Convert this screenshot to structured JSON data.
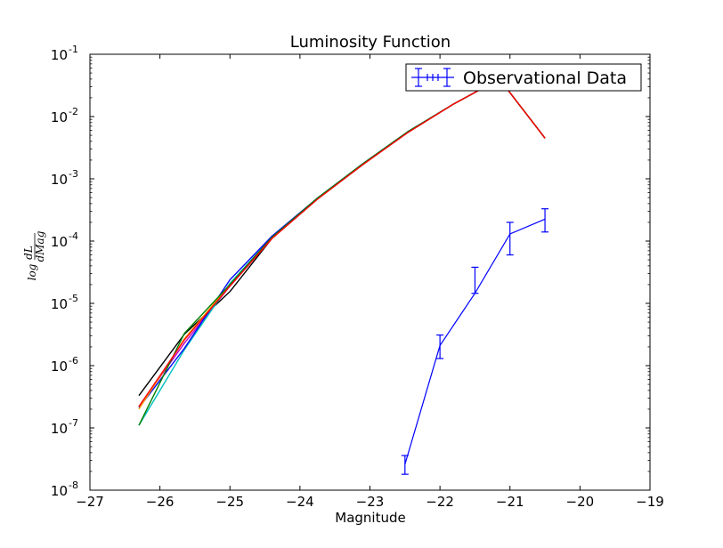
{
  "chart_data": {
    "type": "line",
    "title": "Luminosity Function",
    "xlabel": "Magnitude",
    "ylabel": "log dL/dMag",
    "xlim": [
      -27,
      -19
    ],
    "ylim": [
      1e-08,
      0.1
    ],
    "yscale": "log",
    "grid": false,
    "legend_position": "top-right",
    "x_ticks": [
      -27,
      -26,
      -25,
      -24,
      -23,
      -22,
      -21,
      -20,
      -19
    ],
    "x_tick_labels": [
      "−27",
      "−26",
      "−25",
      "−24",
      "−23",
      "−22",
      "−21",
      "−20",
      "−19"
    ],
    "y_ticks": [
      {
        "value": 1e-08,
        "base": "10",
        "exp": "-8"
      },
      {
        "value": 1e-07,
        "base": "10",
        "exp": "-7"
      },
      {
        "value": 1e-06,
        "base": "10",
        "exp": "-6"
      },
      {
        "value": 1e-05,
        "base": "10",
        "exp": "-5"
      },
      {
        "value": 0.0001,
        "base": "10",
        "exp": "-4"
      },
      {
        "value": 0.001,
        "base": "10",
        "exp": "-3"
      },
      {
        "value": 0.01,
        "base": "10",
        "exp": "-2"
      },
      {
        "value": 0.1,
        "base": "10",
        "exp": "-1"
      }
    ],
    "series": [
      {
        "color": "#000000",
        "x": [
          -26.3,
          -25.65,
          -25.0,
          -24.4,
          -23.75,
          -23.1,
          -22.45,
          -21.8,
          -21.15,
          -20.5
        ],
        "y": [
          3.3e-07,
          3.2e-06,
          1.55e-05,
          0.00011,
          0.00048,
          0.0017,
          0.0057,
          0.016,
          0.04,
          0.0045
        ]
      },
      {
        "color": "#bf00bf",
        "x": [
          -26.3,
          -25.65,
          -25.0,
          -24.4,
          -23.75,
          -23.1,
          -22.45,
          -21.8,
          -21.15,
          -20.5
        ],
        "y": [
          2.2e-07,
          2.3e-06,
          1.9e-05,
          0.00011,
          0.00048,
          0.0017,
          0.0057,
          0.016,
          0.04,
          0.0045
        ]
      },
      {
        "color": "#00bfbf",
        "x": [
          -26.3,
          -25.65,
          -25.0,
          -24.4,
          -23.75,
          -23.1,
          -22.45,
          -21.8,
          -21.15,
          -20.5
        ],
        "y": [
          1.1e-07,
          1.8e-06,
          2.1e-05,
          0.000115,
          0.00048,
          0.0017,
          0.0057,
          0.016,
          0.04,
          0.0045
        ]
      },
      {
        "color": "#0000ff",
        "x": [
          -26.3,
          -25.65,
          -25.0,
          -24.4,
          -23.75,
          -23.1,
          -22.45,
          -21.8,
          -21.15,
          -20.5
        ],
        "y": [
          2.1e-07,
          1.9e-06,
          2.4e-05,
          0.00012,
          0.00049,
          0.00175,
          0.0058,
          0.016,
          0.04,
          0.0045
        ]
      },
      {
        "color": "#ffa500",
        "x": [
          -26.3,
          -25.65,
          -25.0,
          -24.4,
          -23.75,
          -23.1,
          -22.45,
          -21.8,
          -21.15,
          -20.5
        ],
        "y": [
          2e-07,
          2.7e-06,
          2e-05,
          0.00011,
          0.00048,
          0.0017,
          0.0057,
          0.016,
          0.04,
          0.0045
        ]
      },
      {
        "color": "#008000",
        "x": [
          -26.3,
          -25.65,
          -25.0,
          -24.4,
          -23.75,
          -23.1,
          -22.45,
          -21.8,
          -21.15,
          -20.5
        ],
        "y": [
          1.1e-07,
          3.3e-06,
          2e-05,
          0.000115,
          0.00049,
          0.00175,
          0.0058,
          0.016,
          0.04,
          0.0045
        ]
      },
      {
        "color": "#ff0000",
        "x": [
          -26.3,
          -25.65,
          -25.0,
          -24.4,
          -23.75,
          -23.1,
          -22.45,
          -21.8,
          -21.15,
          -20.5
        ],
        "y": [
          2.2e-07,
          2.6e-06,
          1.9e-05,
          0.00011,
          0.00047,
          0.0017,
          0.0056,
          0.016,
          0.04,
          0.0045
        ]
      }
    ],
    "observational": {
      "name": "Observational Data",
      "color": "#0000ff",
      "x": [
        -22.5,
        -22.0,
        -21.5,
        -21.0,
        -20.5
      ],
      "y": [
        2.6e-08,
        2.1e-06,
        1.45e-05,
        0.00013,
        0.000225
      ],
      "yerr_low": [
        1.8e-08,
        1.3e-06,
        1.45e-05,
        6e-05,
        0.00014
      ],
      "yerr_high": [
        3.6e-08,
        3.1e-06,
        3.8e-05,
        0.0002,
        0.00033
      ]
    }
  }
}
